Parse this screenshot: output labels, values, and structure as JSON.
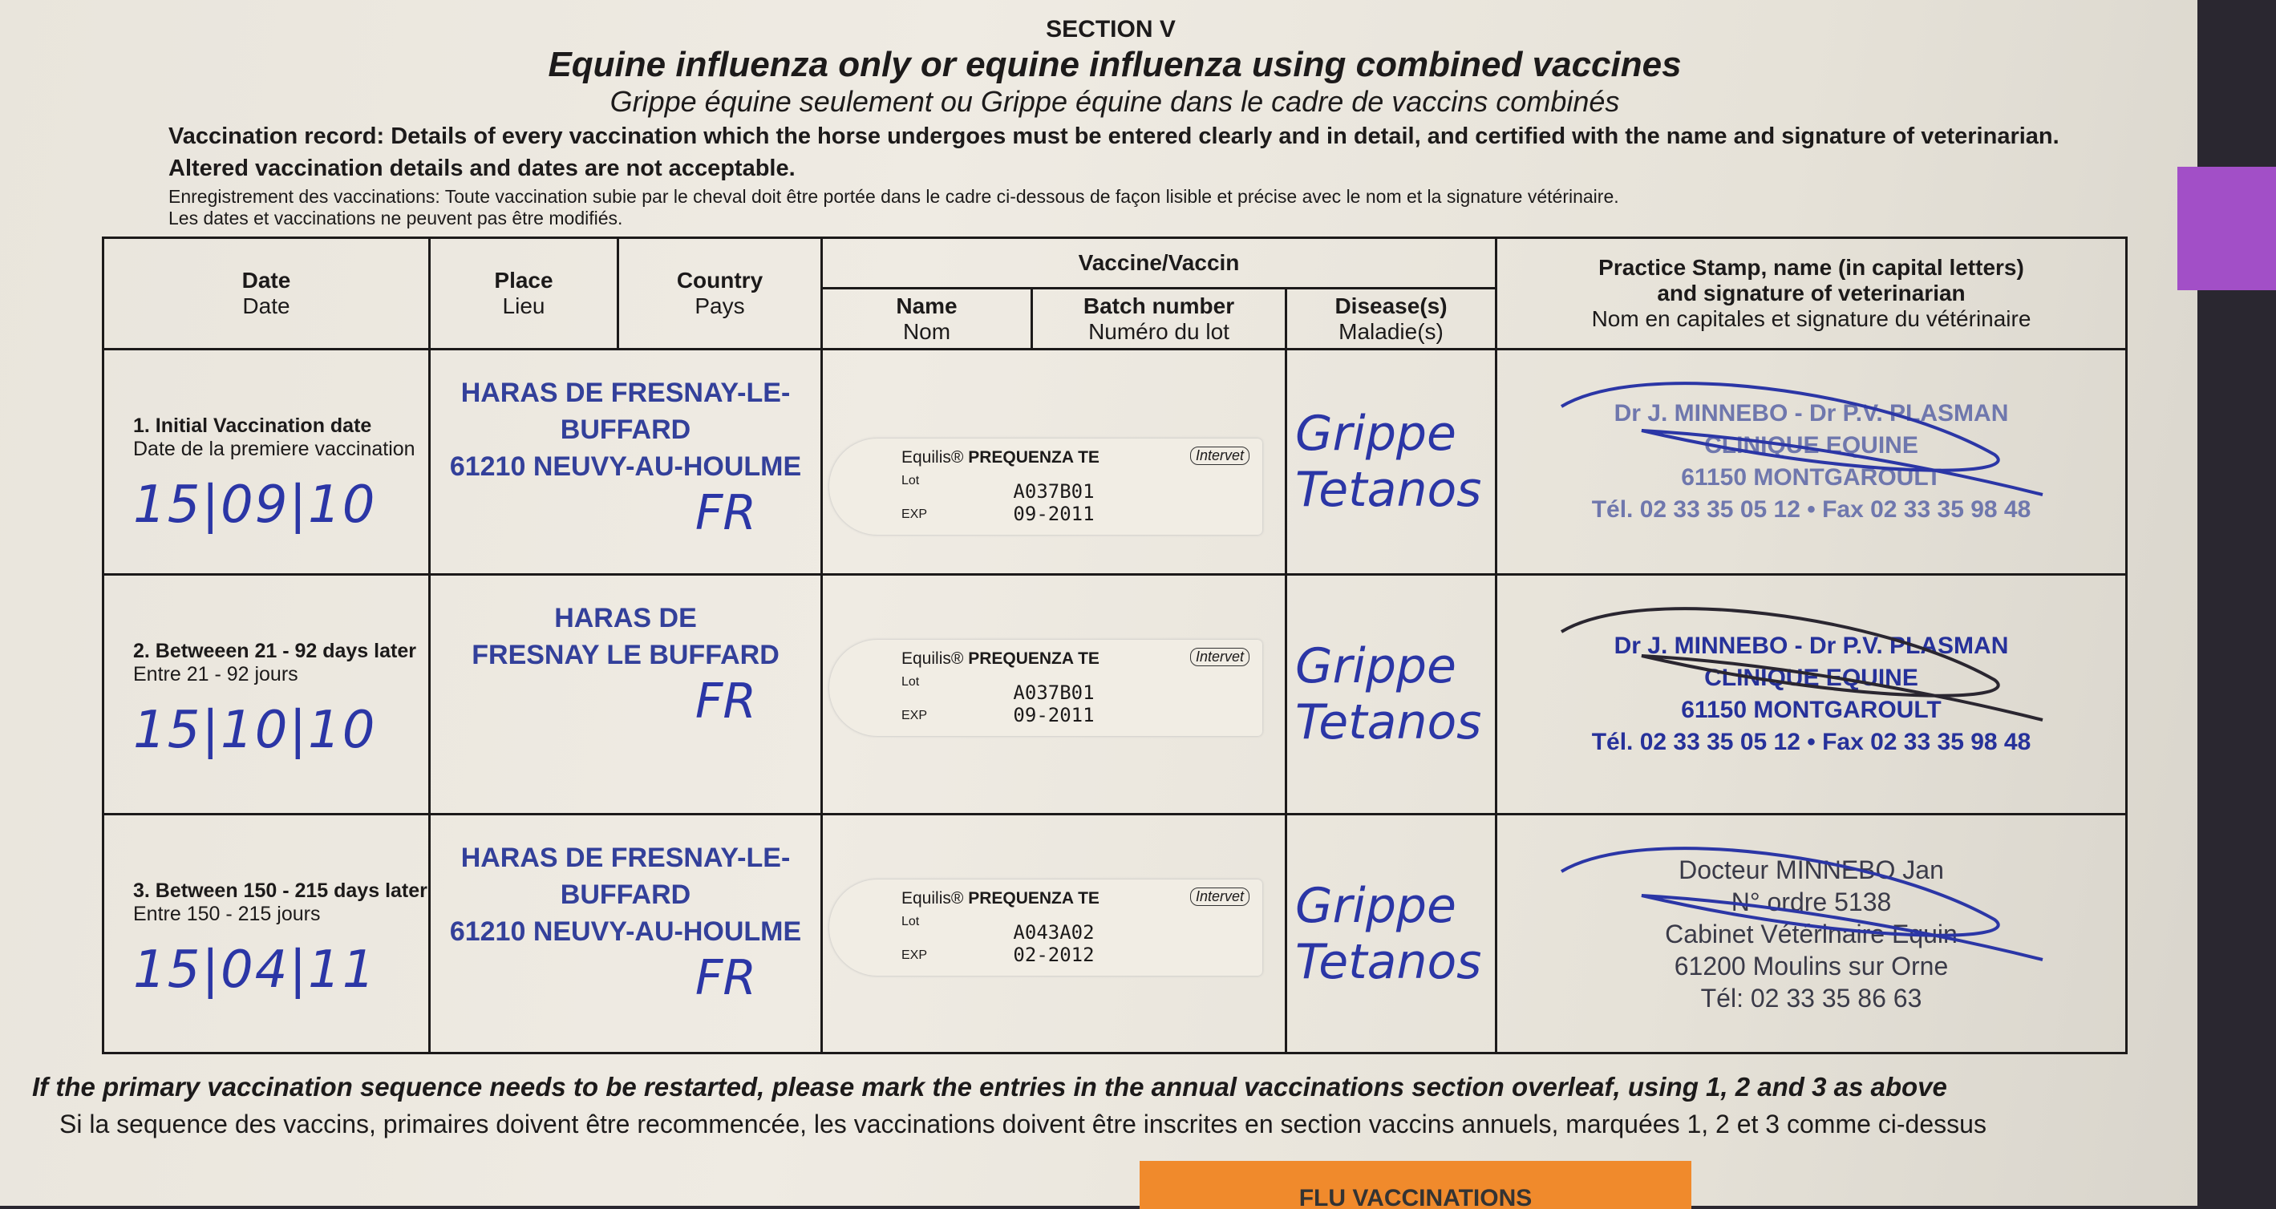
{
  "header": {
    "section": "SECTION V",
    "title": "Equine influenza only or equine influenza using combined vaccines",
    "subtitle": "Grippe équine seulement ou Grippe équine dans le cadre de vaccins combinés",
    "record_en": "Vaccination record: Details of every vaccination which the horse undergoes must be entered clearly and in detail, and certified with the name and signature of veterinarian. Altered vaccination details and dates are not acceptable.",
    "record_fr_1": "Enregistrement des vaccinations: Toute vaccination subie par le cheval doit être portée  dans le cadre ci-dessous de façon lisible et précise avec le nom et la signature vétérinaire.",
    "record_fr_2": "Les dates et vaccinations ne peuvent pas être modifiés."
  },
  "columns": {
    "date": [
      "Date",
      "Date"
    ],
    "place": [
      "Place",
      "Lieu"
    ],
    "country": [
      "Country",
      "Pays"
    ],
    "vaccine": "Vaccine/Vaccin",
    "name": [
      "Name",
      "Nom"
    ],
    "batch": [
      "Batch number",
      "Numéro du lot"
    ],
    "disease": [
      "Disease(s)",
      "Maladie(s)"
    ],
    "stamp": [
      "Practice Stamp, name (in capital letters)",
      "and signature of veterinarian",
      "Nom en capitales et signature du vétérinaire"
    ]
  },
  "rows": [
    {
      "label_en": "1. Initial Vaccination date",
      "label_fr": "Date de la premiere vaccination",
      "date": "15|09|10",
      "place": [
        "HARAS DE FRESNAY-LE-BUFFARD",
        "61210 NEUVY-AU-HOULME"
      ],
      "country": "FR",
      "sticker": {
        "brand": "Equilis®",
        "product": "PREQUENZA TE",
        "maker": "Intervet",
        "lot_label": "Lot",
        "exp_label": "EXP",
        "lot": "A037B01",
        "exp": "09-2011"
      },
      "diseases": [
        "Grippe",
        "Tetanos"
      ],
      "stamp": [
        "Dr J. MINNEBO - Dr P.V. PLASMAN",
        "CLINIQUE EQUINE",
        "61150 MONTGAROULT",
        "Tél. 02 33 35 05 12 • Fax 02 33 35 98 48"
      ]
    },
    {
      "label_en": "2. Betweeen 21 - 92 days later",
      "label_fr": "Entre 21 - 92 jours",
      "date": "15|10|10",
      "place": [
        "HARAS DE",
        "FRESNAY LE BUFFARD"
      ],
      "country": "FR",
      "sticker": {
        "brand": "Equilis®",
        "product": "PREQUENZA TE",
        "maker": "Intervet",
        "lot_label": "Lot",
        "exp_label": "EXP",
        "lot": "A037B01",
        "exp": "09-2011"
      },
      "diseases": [
        "Grippe",
        "Tetanos"
      ],
      "stamp": [
        "Dr J. MINNEBO - Dr P.V. PLASMAN",
        "CLINIQUE EQUINE",
        "61150 MONTGAROULT",
        "Tél. 02 33 35 05 12 • Fax 02 33 35 98 48"
      ]
    },
    {
      "label_en": "3. Between 150 - 215  days later",
      "label_fr": "Entre 150 - 215 jours",
      "date": "15|04|11",
      "place": [
        "HARAS DE FRESNAY-LE-BUFFARD",
        "61210 NEUVY-AU-HOULME"
      ],
      "country": "FR",
      "sticker": {
        "brand": "Equilis®",
        "product": "PREQUENZA TE",
        "maker": "Intervet",
        "lot_label": "Lot",
        "exp_label": "EXP",
        "lot": "A043A02",
        "exp": "02-2012"
      },
      "diseases": [
        "Grippe",
        "Tetanos"
      ],
      "stamp": [
        "Docteur MINNEBO Jan",
        "N° ordre 5138",
        "Cabinet Vétérinaire Equin",
        "61200 Moulins sur Orne",
        "Tél: 02 33 35 86 63"
      ]
    }
  ],
  "footer": {
    "en": "If the primary vaccination sequence needs to be restarted, please mark the entries in the annual vaccinations section overleaf, using 1, 2 and 3 as above",
    "fr": "Si la sequence des vaccins, primaires doivent être recommencée, les vaccinations doivent être inscrites en section vaccins annuels, marquées 1, 2 et 3 comme ci-dessus"
  },
  "next_tab": "FLU VACCINATIONS",
  "colors": {
    "paper": "#ece8df",
    "ink_handwriting": "#2b36a6",
    "tab_orange": "#f08a2c",
    "tab_purple": "#a24fc7"
  }
}
